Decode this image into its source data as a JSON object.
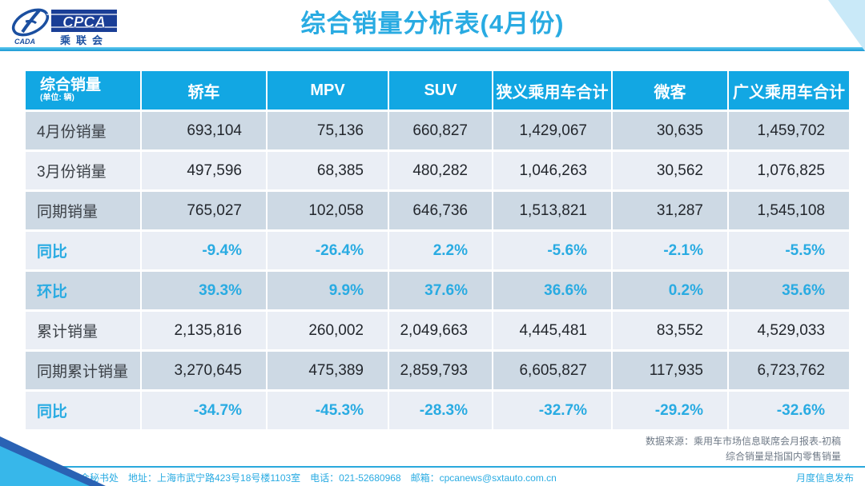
{
  "header": {
    "title": "综合销量分析表(4月份)",
    "logo": {
      "cpca": "CPCA",
      "cada": "CADA",
      "chinese_name": "乘联会"
    }
  },
  "table": {
    "corner_header": "综合销量",
    "unit_note": "(单位: 辆)",
    "columns": [
      "轿车",
      "MPV",
      "SUV",
      "狭义乘用车合计",
      "微客",
      "广义乘用车合计"
    ],
    "rows": [
      {
        "label": "4月份销量",
        "type": "number",
        "values": [
          "693,104",
          "75,136",
          "660,827",
          "1,429,067",
          "30,635",
          "1,459,702"
        ]
      },
      {
        "label": "3月份销量",
        "type": "number",
        "values": [
          "497,596",
          "68,385",
          "480,282",
          "1,046,263",
          "30,562",
          "1,076,825"
        ]
      },
      {
        "label": "同期销量",
        "type": "number",
        "values": [
          "765,027",
          "102,058",
          "646,736",
          "1,513,821",
          "31,287",
          "1,545,108"
        ]
      },
      {
        "label": "同比",
        "type": "percent",
        "values": [
          "-9.4%",
          "-26.4%",
          "2.2%",
          "-5.6%",
          "-2.1%",
          "-5.5%"
        ]
      },
      {
        "label": "环比",
        "type": "percent",
        "values": [
          "39.3%",
          "9.9%",
          "37.6%",
          "36.6%",
          "0.2%",
          "35.6%"
        ]
      },
      {
        "label": "累计销量",
        "type": "number",
        "values": [
          "2,135,816",
          "260,002",
          "2,049,663",
          "4,445,481",
          "83,552",
          "4,529,033"
        ]
      },
      {
        "label": "同期累计销量",
        "type": "number",
        "values": [
          "3,270,645",
          "475,389",
          "2,859,793",
          "6,605,827",
          "117,935",
          "6,723,762"
        ]
      },
      {
        "label": "同比",
        "type": "percent",
        "values": [
          "-34.7%",
          "-45.3%",
          "-28.3%",
          "-32.7%",
          "-29.2%",
          "-32.6%"
        ]
      }
    ]
  },
  "chart_data": {
    "type": "table",
    "title": "综合销量分析表(4月份)",
    "columns": [
      "综合销量",
      "轿车",
      "MPV",
      "SUV",
      "狭义乘用车合计",
      "微客",
      "广义乘用车合计"
    ],
    "rows": [
      [
        "4月份销量",
        "693,104",
        "75,136",
        "660,827",
        "1,429,067",
        "30,635",
        "1,459,702"
      ],
      [
        "3月份销量",
        "497,596",
        "68,385",
        "480,282",
        "1,046,263",
        "30,562",
        "1,076,825"
      ],
      [
        "同期销量",
        "765,027",
        "102,058",
        "646,736",
        "1,513,821",
        "31,287",
        "1,545,108"
      ],
      [
        "同比",
        "-9.4%",
        "-26.4%",
        "2.2%",
        "-5.6%",
        "-2.1%",
        "-5.5%"
      ],
      [
        "环比",
        "39.3%",
        "9.9%",
        "37.6%",
        "36.6%",
        "0.2%",
        "35.6%"
      ],
      [
        "累计销量",
        "2,135,816",
        "260,002",
        "2,049,663",
        "4,445,481",
        "83,552",
        "4,529,033"
      ],
      [
        "同期累计销量",
        "3,270,645",
        "475,389",
        "2,859,793",
        "6,605,827",
        "117,935",
        "6,723,762"
      ],
      [
        "同比",
        "-34.7%",
        "-45.3%",
        "-28.3%",
        "-32.7%",
        "-29.2%",
        "-32.6%"
      ]
    ]
  },
  "notes": {
    "line1": "数据来源：乘用车市场信息联席会月报表-初稿",
    "line2": "综合销量是指国内零售销量"
  },
  "footer": {
    "left": "乘联会秘书处　地址：上海市武宁路423号18号楼1103室　电话：021-52680968　邮箱：cpcanews@sxtauto.com.cn",
    "right": "月度信息发布"
  },
  "colors": {
    "accent_cyan": "#29ABE2",
    "table_header_bg": "#12A7E3",
    "row_dark": "#CDD9E4",
    "row_light": "#EAEEF5",
    "logo_navy": "#1A3E96",
    "note_gray": "#6F7A87"
  }
}
